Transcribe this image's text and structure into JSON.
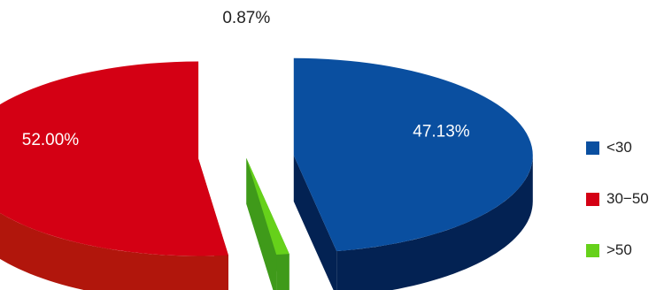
{
  "chart_data": {
    "type": "pie",
    "style": "3d-exploded",
    "categories": [
      "<30",
      "30−50",
      ">50"
    ],
    "values": [
      47.13,
      52.0,
      0.87
    ],
    "labels": [
      "47.13%",
      "52.00%",
      "0.87%"
    ],
    "colors": [
      "#0a4fa0",
      "#d40014",
      "#66d11a"
    ],
    "side_colors": [
      "#032253",
      "#b1160c",
      "#3f9a1a"
    ],
    "legend": {
      "placement": "right",
      "entries": [
        {
          "label": "<30",
          "color": "#0a4fa0"
        },
        {
          "label": "30−50",
          "color": "#d40014"
        },
        {
          "label": ">50",
          "color": "#66d11a"
        }
      ]
    }
  }
}
